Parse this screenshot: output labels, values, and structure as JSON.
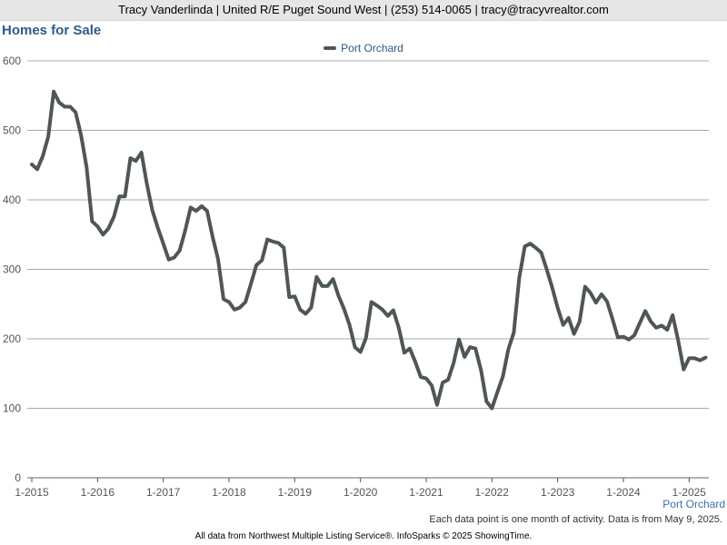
{
  "header": {
    "text": "Tracy Vanderlinda | United R/E Puget Sound West | (253) 514-0065 | tracy@tracyvrealtor.com"
  },
  "chart_data": {
    "type": "line",
    "title": "Homes for Sale",
    "legend_position": "top-center",
    "grid": true,
    "ylim": [
      0,
      600
    ],
    "y_ticks": [
      "0",
      "100",
      "200",
      "300",
      "400",
      "500",
      "600"
    ],
    "x_ticks": [
      "1-2015",
      "1-2016",
      "1-2017",
      "1-2018",
      "1-2019",
      "1-2020",
      "1-2021",
      "1-2022",
      "1-2023",
      "1-2024",
      "1-2025"
    ],
    "x_start": "1-2015",
    "series": [
      {
        "name": "Port Orchard",
        "color": "#4f5753",
        "values": [
          451,
          444,
          463,
          491,
          556,
          540,
          534,
          534,
          526,
          493,
          447,
          369,
          362,
          350,
          359,
          376,
          405,
          405,
          460,
          456,
          468,
          423,
          385,
          360,
          337,
          314,
          317,
          327,
          356,
          389,
          384,
          391,
          384,
          347,
          315,
          257,
          253,
          242,
          245,
          253,
          279,
          306,
          313,
          343,
          340,
          338,
          331,
          260,
          261,
          242,
          236,
          245,
          289,
          276,
          276,
          286,
          262,
          243,
          220,
          188,
          181,
          201,
          253,
          248,
          242,
          233,
          241,
          216,
          180,
          186,
          167,
          145,
          143,
          133,
          105,
          137,
          141,
          165,
          199,
          174,
          188,
          186,
          155,
          110,
          100,
          123,
          146,
          185,
          209,
          288,
          333,
          337,
          331,
          324,
          300,
          274,
          245,
          220,
          230,
          207,
          225,
          275,
          266,
          252,
          264,
          254,
          229,
          202,
          203,
          199,
          205,
          223,
          240,
          225,
          216,
          219,
          213,
          234,
          198,
          156,
          172,
          172,
          169,
          173
        ]
      }
    ]
  },
  "series_label": "Port Orchard",
  "footnote": "Each data point is one month of activity. Data is from May 9, 2025.",
  "bottom_note": "All data from Northwest Multiple Listing Service®. InfoSparks © 2025 ShowingTime.",
  "colors": {
    "title": "#2e5a8c",
    "gridline": "#aaaaaa",
    "header_bg": "#e6e6e6"
  }
}
